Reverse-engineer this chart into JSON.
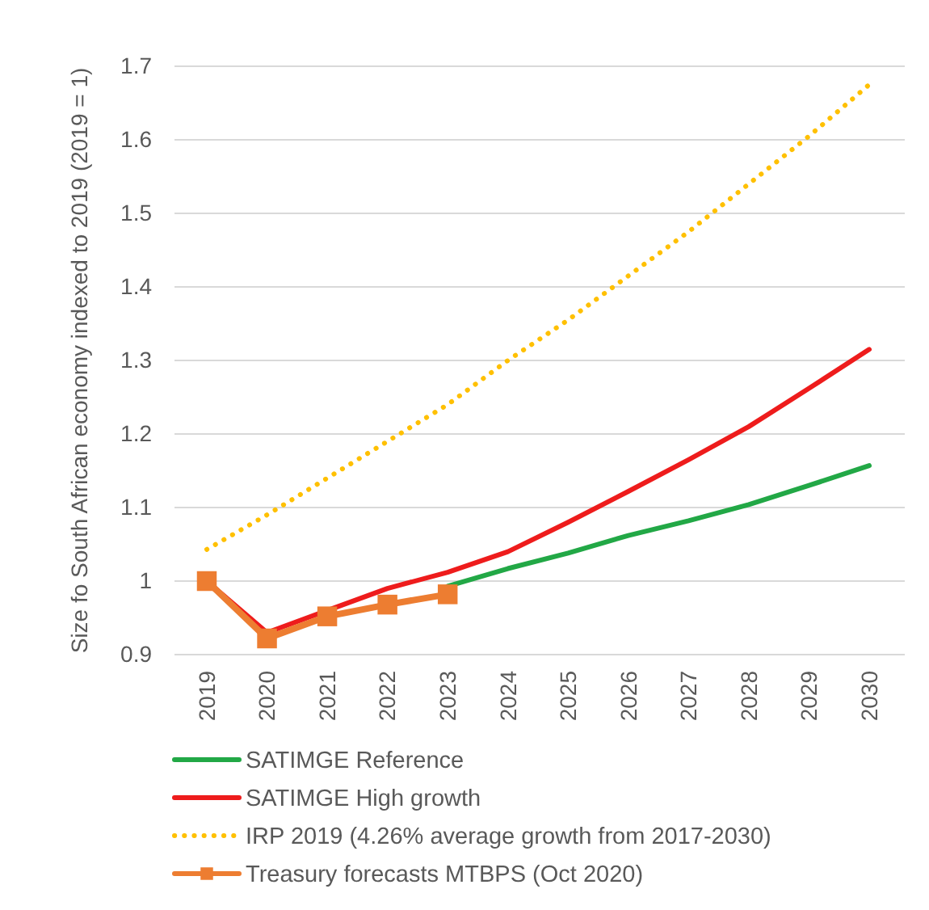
{
  "chart_data": {
    "type": "line",
    "ylabel": "Size fo South African economy indexed to 2019 (2019 = 1)",
    "categories": [
      "2019",
      "2020",
      "2021",
      "2022",
      "2023",
      "2024",
      "2025",
      "2026",
      "2027",
      "2028",
      "2029",
      "2030"
    ],
    "series": [
      {
        "name": "SATIMGE Reference",
        "color": "#22a846",
        "values": [
          null,
          null,
          null,
          null,
          0.993,
          1.017,
          1.038,
          1.062,
          1.082,
          1.104,
          1.13,
          1.157
        ]
      },
      {
        "name": "SATIMGE High growth",
        "color": "#ee1c1c",
        "values": [
          1,
          0.93,
          0.96,
          0.99,
          1.012,
          1.04,
          1.08,
          1.122,
          1.165,
          1.21,
          1.262,
          1.315
        ]
      },
      {
        "name": "IRP 2019 (4.26% average growth from 2017-2030)",
        "color": "#ffc000",
        "line_style": "dotted",
        "values": [
          1.043,
          1.09,
          1.14,
          1.19,
          1.24,
          1.3,
          1.355,
          1.415,
          1.475,
          1.54,
          1.605,
          1.675
        ]
      },
      {
        "name": "Treasury forecasts MTBPS (Oct 2020)",
        "color": "#ed7d31",
        "marker": "square",
        "values": [
          1,
          0.922,
          0.952,
          0.968,
          0.982,
          null,
          null,
          null,
          null,
          null,
          null,
          null
        ]
      }
    ],
    "ylim": [
      0.9,
      1.7
    ],
    "yticks": [
      0.9,
      1,
      1.1,
      1.2,
      1.3,
      1.4,
      1.5,
      1.6,
      1.7
    ],
    "grid": "y",
    "legend": "bottom",
    "marker": "none",
    "line_style": "solid"
  }
}
